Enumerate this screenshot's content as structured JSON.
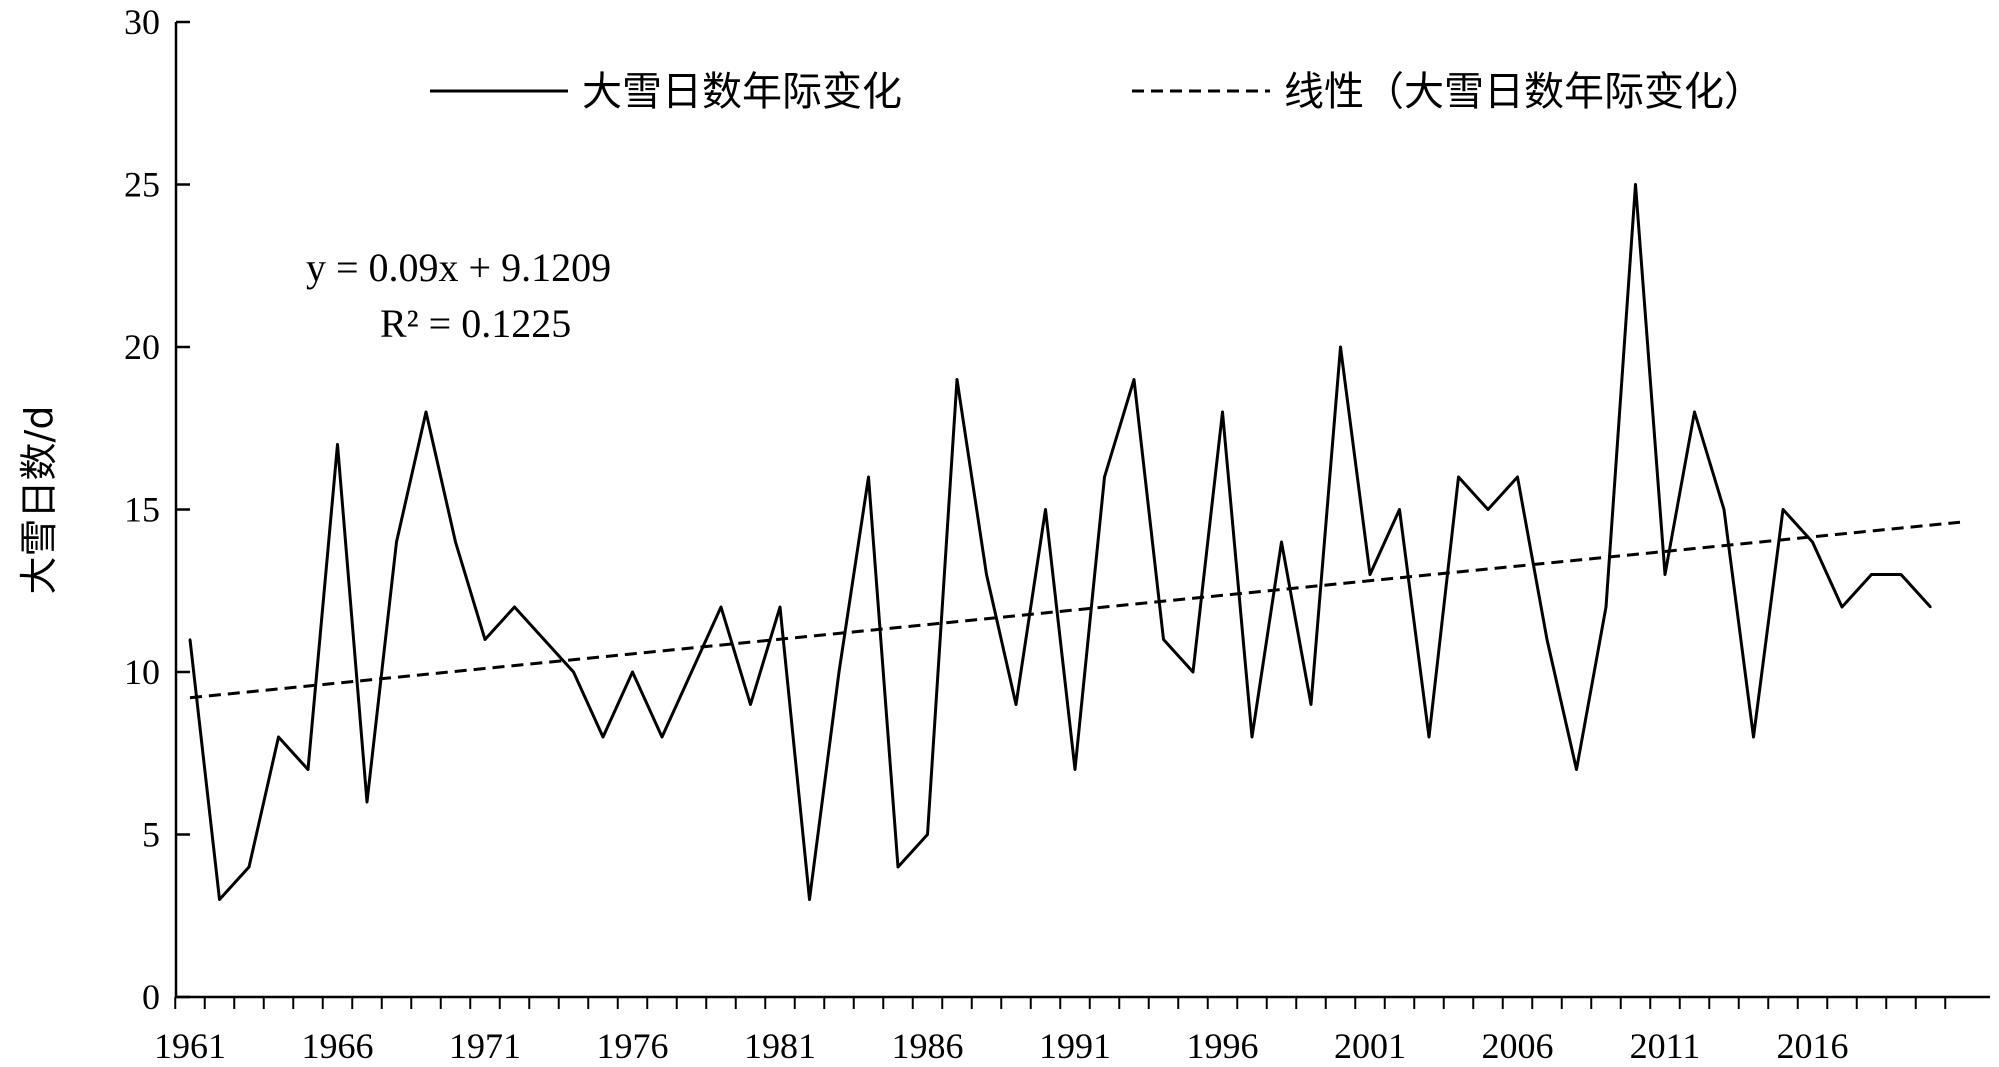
{
  "chart_data": {
    "type": "line",
    "title": "",
    "xlabel": "",
    "ylabel": "大雪日数/d",
    "ylim": [
      0,
      30
    ],
    "yticks": [
      0,
      5,
      10,
      15,
      20,
      25,
      30
    ],
    "xticks": [
      1961,
      1966,
      1971,
      1976,
      1981,
      1986,
      1991,
      1996,
      2001,
      2006,
      2011,
      2016
    ],
    "xlim": [
      1961,
      2020
    ],
    "grid": false,
    "legend_position": "top",
    "series": [
      {
        "name": "大雪日数年际变化",
        "style": "solid",
        "x": [
          1961,
          1962,
          1963,
          1964,
          1965,
          1966,
          1967,
          1968,
          1969,
          1970,
          1971,
          1972,
          1973,
          1974,
          1975,
          1976,
          1977,
          1978,
          1979,
          1980,
          1981,
          1982,
          1983,
          1984,
          1985,
          1986,
          1987,
          1988,
          1989,
          1990,
          1991,
          1992,
          1993,
          1994,
          1995,
          1996,
          1997,
          1998,
          1999,
          2000,
          2001,
          2002,
          2003,
          2004,
          2005,
          2006,
          2007,
          2008,
          2009,
          2010,
          2011,
          2012,
          2013,
          2014,
          2015,
          2016,
          2017,
          2018,
          2019,
          2020
        ],
        "values": [
          11,
          3,
          4,
          8,
          7,
          17,
          6,
          14,
          18,
          14,
          11,
          12,
          11,
          10,
          8,
          10,
          8,
          10,
          12,
          9,
          12,
          3,
          10,
          16,
          4,
          5,
          19,
          13,
          9,
          15,
          7,
          16,
          19,
          11,
          10,
          18,
          8,
          14,
          9,
          20,
          13,
          15,
          8,
          16,
          15,
          16,
          11,
          7,
          12,
          25,
          13,
          18,
          15,
          8,
          15,
          14,
          12,
          13,
          13,
          12
        ]
      },
      {
        "name": "线性（大雪日数年际变化）",
        "style": "dashed",
        "x": [
          1961,
          2021
        ],
        "values": [
          9.21,
          14.61
        ]
      }
    ],
    "annotations": [
      "y = 0.09x  + 9.1209",
      "R² = 0.1225"
    ],
    "colors": {
      "line": "#000000",
      "axis": "#000000"
    }
  }
}
